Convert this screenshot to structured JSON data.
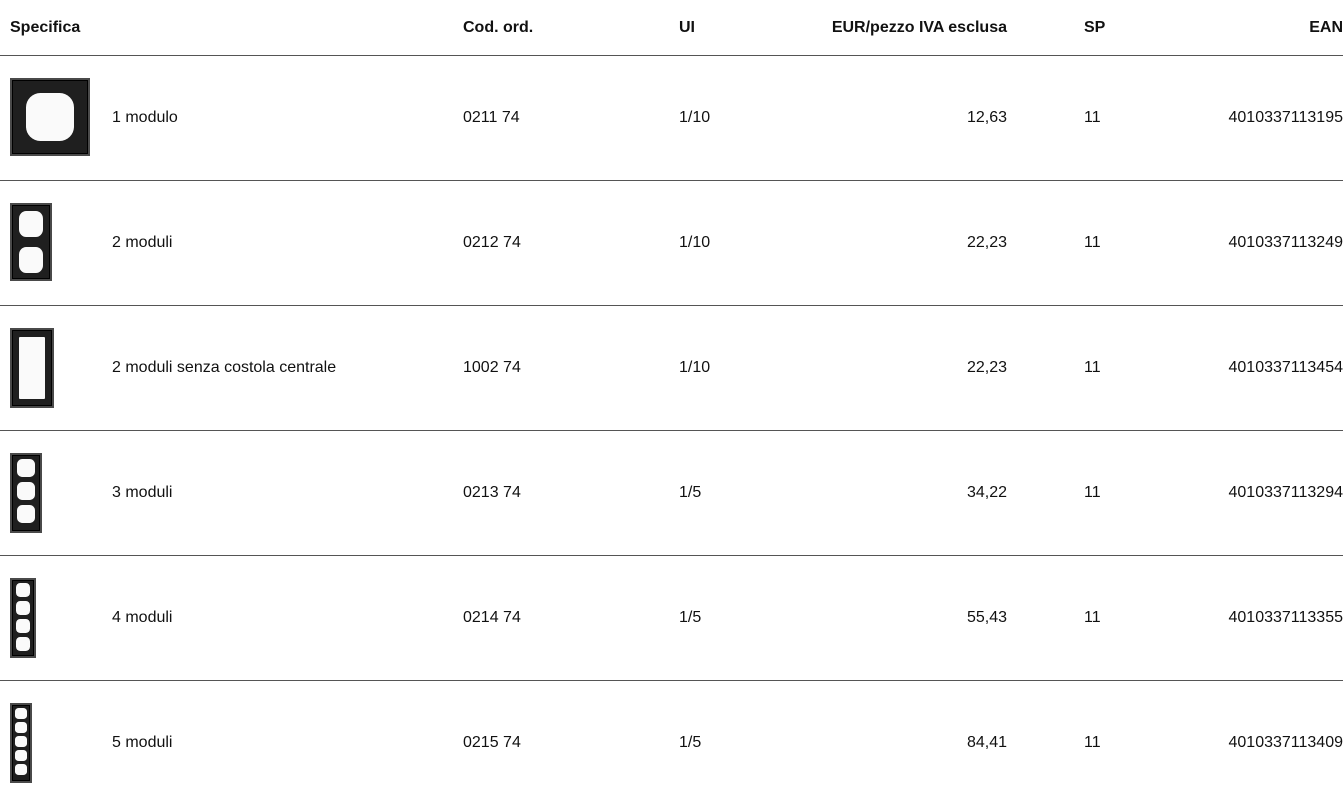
{
  "header": {
    "spec": "Specifica",
    "cod": "Cod. ord.",
    "ui": "UI",
    "eur": "EUR/pezzo IVA esclusa",
    "sp": "SP",
    "ean": "EAN"
  },
  "rows": [
    {
      "icon": "frame-1-module-icon",
      "desc": "1 modulo",
      "cod": "0211 74",
      "ui": "1/10",
      "eur": "12,63",
      "sp": "11",
      "ean": "4010337113195"
    },
    {
      "icon": "frame-2-modules-icon",
      "desc": "2 moduli",
      "cod": "0212 74",
      "ui": "1/10",
      "eur": "22,23",
      "sp": "11",
      "ean": "4010337113249"
    },
    {
      "icon": "frame-2-modules-no-rib-icon",
      "desc": "2 moduli senza costola centrale",
      "cod": "1002 74",
      "ui": "1/10",
      "eur": "22,23",
      "sp": "11",
      "ean": "4010337113454"
    },
    {
      "icon": "frame-3-modules-icon",
      "desc": "3 moduli",
      "cod": "0213 74",
      "ui": "1/5",
      "eur": "34,22",
      "sp": "11",
      "ean": "4010337113294"
    },
    {
      "icon": "frame-4-modules-icon",
      "desc": "4 moduli",
      "cod": "0214 74",
      "ui": "1/5",
      "eur": "55,43",
      "sp": "11",
      "ean": "4010337113355"
    },
    {
      "icon": "frame-5-modules-icon",
      "desc": "5 moduli",
      "cod": "0215 74",
      "ui": "1/5",
      "eur": "84,41",
      "sp": "11",
      "ean": "4010337113409"
    }
  ]
}
